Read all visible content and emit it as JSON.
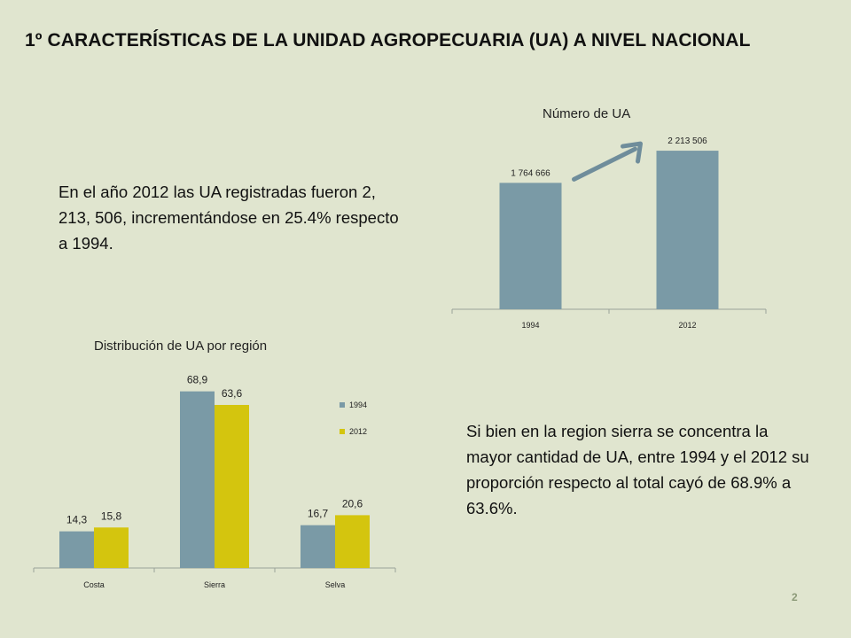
{
  "title": "1º CARACTERÍSTICAS DE LA UNIDAD AGROPECUARIA (UA) A NIVEL NACIONAL",
  "left_text": "En el año 2012 las UA registradas fueron 2, 213, 506, incrementándose en 25.4% respecto a 1994.",
  "right_text": "Si bien en la region sierra se concentra la mayor cantidad de UA, entre 1994 y el 2012 su proporción respecto al total cayó de 68.9% a 63.6%.",
  "page_number": "2",
  "colors": {
    "series_1994": "#7a9aa6",
    "series_2012": "#d4c50e",
    "arrow": "#6f8d9b",
    "background": "#e0e5cf"
  },
  "chart_data": [
    {
      "type": "bar",
      "title": "Número de UA",
      "categories": [
        "1994",
        "2012"
      ],
      "values": [
        1764666,
        2213506
      ],
      "data_labels": [
        "1 764 666",
        "2 213 506"
      ],
      "ylim": [
        0,
        2400000
      ],
      "grid": false,
      "legend": "none",
      "annotation": "arrow-up-right"
    },
    {
      "type": "bar",
      "title": "Distribución de UA por región",
      "categories": [
        "Costa",
        "Sierra",
        "Selva"
      ],
      "series": [
        {
          "name": "1994",
          "values": [
            14.3,
            68.9,
            16.7
          ],
          "labels": [
            "14,3",
            "68,9",
            "16,7"
          ]
        },
        {
          "name": "2012",
          "values": [
            15.8,
            63.6,
            20.6
          ],
          "labels": [
            "15,8",
            "63,6",
            "20,6"
          ]
        }
      ],
      "ylim": [
        0,
        75
      ],
      "grid": false,
      "legend": "right"
    }
  ]
}
